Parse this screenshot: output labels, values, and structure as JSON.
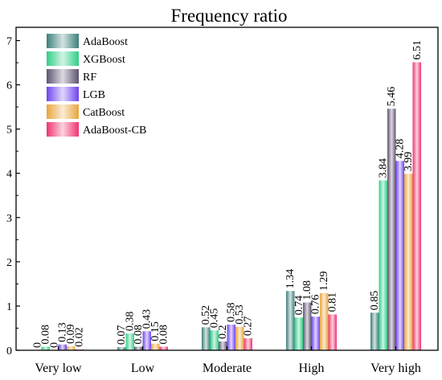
{
  "chart_data": {
    "type": "bar",
    "title": "Frequency ratio",
    "xlabel": "",
    "ylabel": "",
    "ylim": [
      0,
      7.3
    ],
    "yticks": [
      0,
      1,
      2,
      3,
      4,
      5,
      6,
      7
    ],
    "categories": [
      "Very low",
      "Low",
      "Moderate",
      "High",
      "Very high"
    ],
    "legend_position": "top-left",
    "series": [
      {
        "name": "AdaBoost",
        "color": "#3d7f7a",
        "values": [
          0,
          0.07,
          0.52,
          1.34,
          0.85
        ],
        "labels": [
          "0",
          "0.07",
          "0.52",
          "1.34",
          "0.85"
        ]
      },
      {
        "name": "XGBoost",
        "color": "#2fcf86",
        "values": [
          0.08,
          0.38,
          0.45,
          0.74,
          3.84
        ],
        "labels": [
          "0.08",
          "0.38",
          "0.45",
          "0.74",
          "3.84"
        ]
      },
      {
        "name": "RF",
        "color": "#5e5470",
        "values": [
          0,
          0.08,
          0.2,
          1.08,
          5.46
        ],
        "labels": [
          "0",
          "0.08",
          "0.2",
          "1.08",
          "5.46"
        ]
      },
      {
        "name": "LGB",
        "color": "#6f43f0",
        "values": [
          0.13,
          0.43,
          0.58,
          0.76,
          4.28
        ],
        "labels": [
          "0.13",
          "0.43",
          "0.58",
          "0.76",
          "4.28"
        ]
      },
      {
        "name": "CatBoost",
        "color": "#e8a53c",
        "values": [
          0.09,
          0.15,
          0.53,
          1.29,
          3.99
        ],
        "labels": [
          "0.09",
          "0.15",
          "0.53",
          "1.29",
          "3.99"
        ]
      },
      {
        "name": "AdaBoost-CB",
        "color": "#f0336f",
        "values": [
          0.02,
          0.08,
          0.27,
          0.81,
          6.51
        ],
        "labels": [
          "0.02",
          "0.08",
          "0.27",
          "0.81",
          "6.51"
        ]
      }
    ]
  }
}
